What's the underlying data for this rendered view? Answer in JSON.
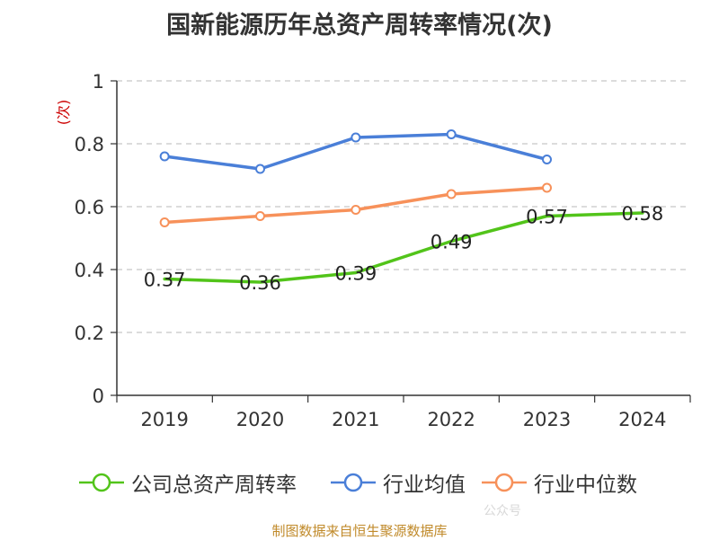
{
  "chart_data": {
    "type": "line",
    "title": "国新能源历年总资产周转率情况(次)",
    "ylabel": "(次)",
    "categories": [
      "2019",
      "2020",
      "2021",
      "2022",
      "2023",
      "2024"
    ],
    "ylim": [
      0,
      1
    ],
    "yticks": [
      0,
      0.2,
      0.4,
      0.6,
      0.8,
      1
    ],
    "ytick_labels": [
      "0",
      "0.2",
      "0.4",
      "0.6",
      "0.8",
      "1"
    ],
    "grid": true,
    "legend_position": "bottom",
    "series": [
      {
        "name": "公司总资产周转率",
        "color": "#52c41a",
        "values": [
          0.37,
          0.36,
          0.39,
          0.49,
          0.57,
          0.58
        ],
        "show_labels": true,
        "markers": false
      },
      {
        "name": "行业均值",
        "color": "#4a7fd8",
        "values": [
          0.76,
          0.72,
          0.82,
          0.83,
          0.75,
          null
        ],
        "show_labels": false,
        "markers": true
      },
      {
        "name": "行业中位数",
        "color": "#f7915a",
        "values": [
          0.55,
          0.57,
          0.59,
          0.64,
          0.66,
          null
        ],
        "show_labels": false,
        "markers": true
      }
    ]
  },
  "footer": {
    "source": "制图数据来自恒生聚源数据库",
    "watermark": "公众号"
  }
}
